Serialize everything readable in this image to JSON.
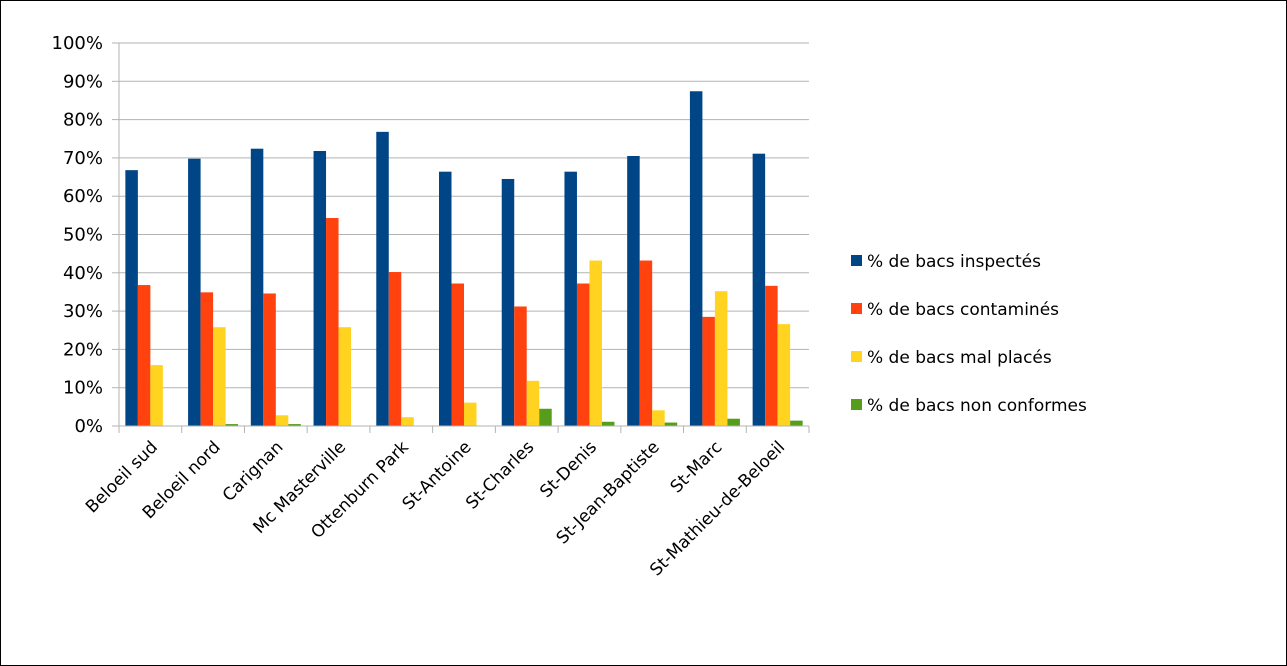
{
  "chart_data": {
    "type": "bar",
    "title": "",
    "xlabel": "",
    "ylabel": "",
    "ylim": [
      0,
      100
    ],
    "yticks": [
      0,
      10,
      20,
      30,
      40,
      50,
      60,
      70,
      80,
      90,
      100
    ],
    "ytick_suffix": "%",
    "grid": true,
    "legend_position": "right",
    "categories": [
      "Beloeil sud",
      "Beloeil nord",
      "Carignan",
      "Mc Masterville",
      "Ottenburn Park",
      "St-Antoine",
      "St-Charles",
      "St-Denis",
      "St-Jean-Baptiste",
      "St-Marc",
      "St-Mathieu-de-Beloeil"
    ],
    "series": [
      {
        "name": "% de bacs inspectés",
        "color": "#004586",
        "values": [
          66.8,
          69.8,
          72.4,
          71.8,
          76.8,
          66.4,
          64.5,
          66.4,
          70.5,
          87.4,
          71.1
        ]
      },
      {
        "name": "% de bacs contaminés",
        "color": "#ff420e",
        "values": [
          36.8,
          34.9,
          34.6,
          54.3,
          40.2,
          37.2,
          31.2,
          37.2,
          43.2,
          28.5,
          36.6
        ]
      },
      {
        "name": "% de bacs mal placés",
        "color": "#ffd320",
        "values": [
          15.9,
          25.8,
          2.8,
          25.8,
          2.3,
          6.1,
          11.8,
          43.2,
          4.1,
          35.2,
          26.6
        ]
      },
      {
        "name": "% de bacs non conformes",
        "color": "#579d1c",
        "values": [
          0,
          0.5,
          0.5,
          0,
          0,
          0,
          4.5,
          1.1,
          0.9,
          1.9,
          1.4
        ]
      }
    ]
  }
}
